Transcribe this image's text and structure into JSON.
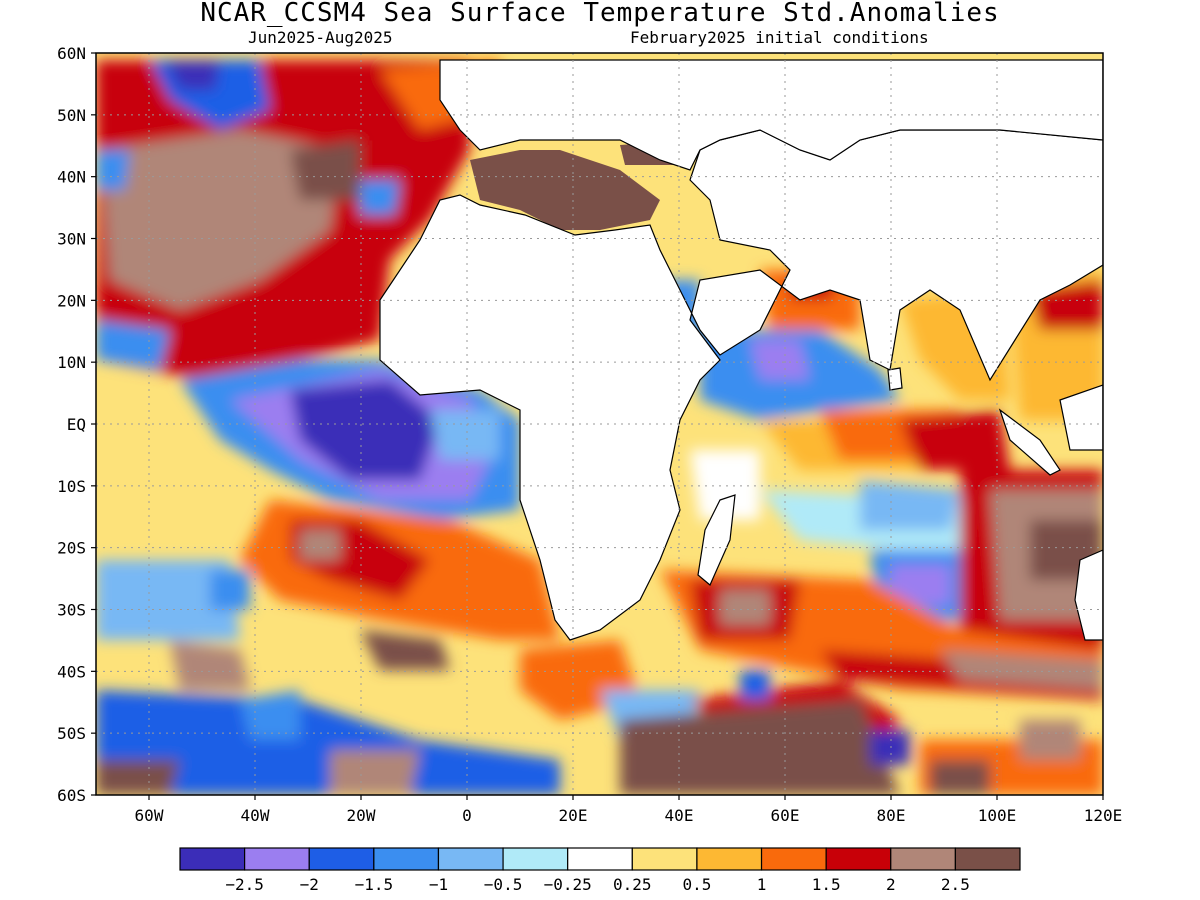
{
  "header": {
    "title": "NCAR_CCSM4 Sea Surface Temperature Std.Anomalies",
    "period": "Jun2025-Aug2025",
    "initial_conditions": "February2025 initial conditions"
  },
  "map": {
    "projection": "lat-lon",
    "lon_range": [
      -70,
      120
    ],
    "lat_range": [
      -60,
      60
    ],
    "gridlines": true,
    "lat_labels": [
      "60N",
      "50N",
      "40N",
      "30N",
      "20N",
      "10N",
      "EQ",
      "10S",
      "20S",
      "30S",
      "40S",
      "50S",
      "60S"
    ],
    "lon_labels": [
      "60W",
      "40W",
      "20W",
      "0",
      "20E",
      "40E",
      "60E",
      "80E",
      "100E",
      "120E"
    ],
    "land_color": "#ffffff"
  },
  "legend": {
    "colors": [
      "#3b2db8",
      "#9b7ef0",
      "#1e5ee6",
      "#3b8ef0",
      "#78b8f4",
      "#b0eaf8",
      "#ffffff",
      "#fde27a",
      "#fdb833",
      "#f96a0c",
      "#c80008",
      "#b08678",
      "#7a5048"
    ],
    "labels": [
      "-2.5",
      "-2",
      "-1.5",
      "-1",
      "-0.5",
      "-0.25",
      "0.25",
      "0.5",
      "1",
      "1.5",
      "2",
      "2.5"
    ]
  }
}
